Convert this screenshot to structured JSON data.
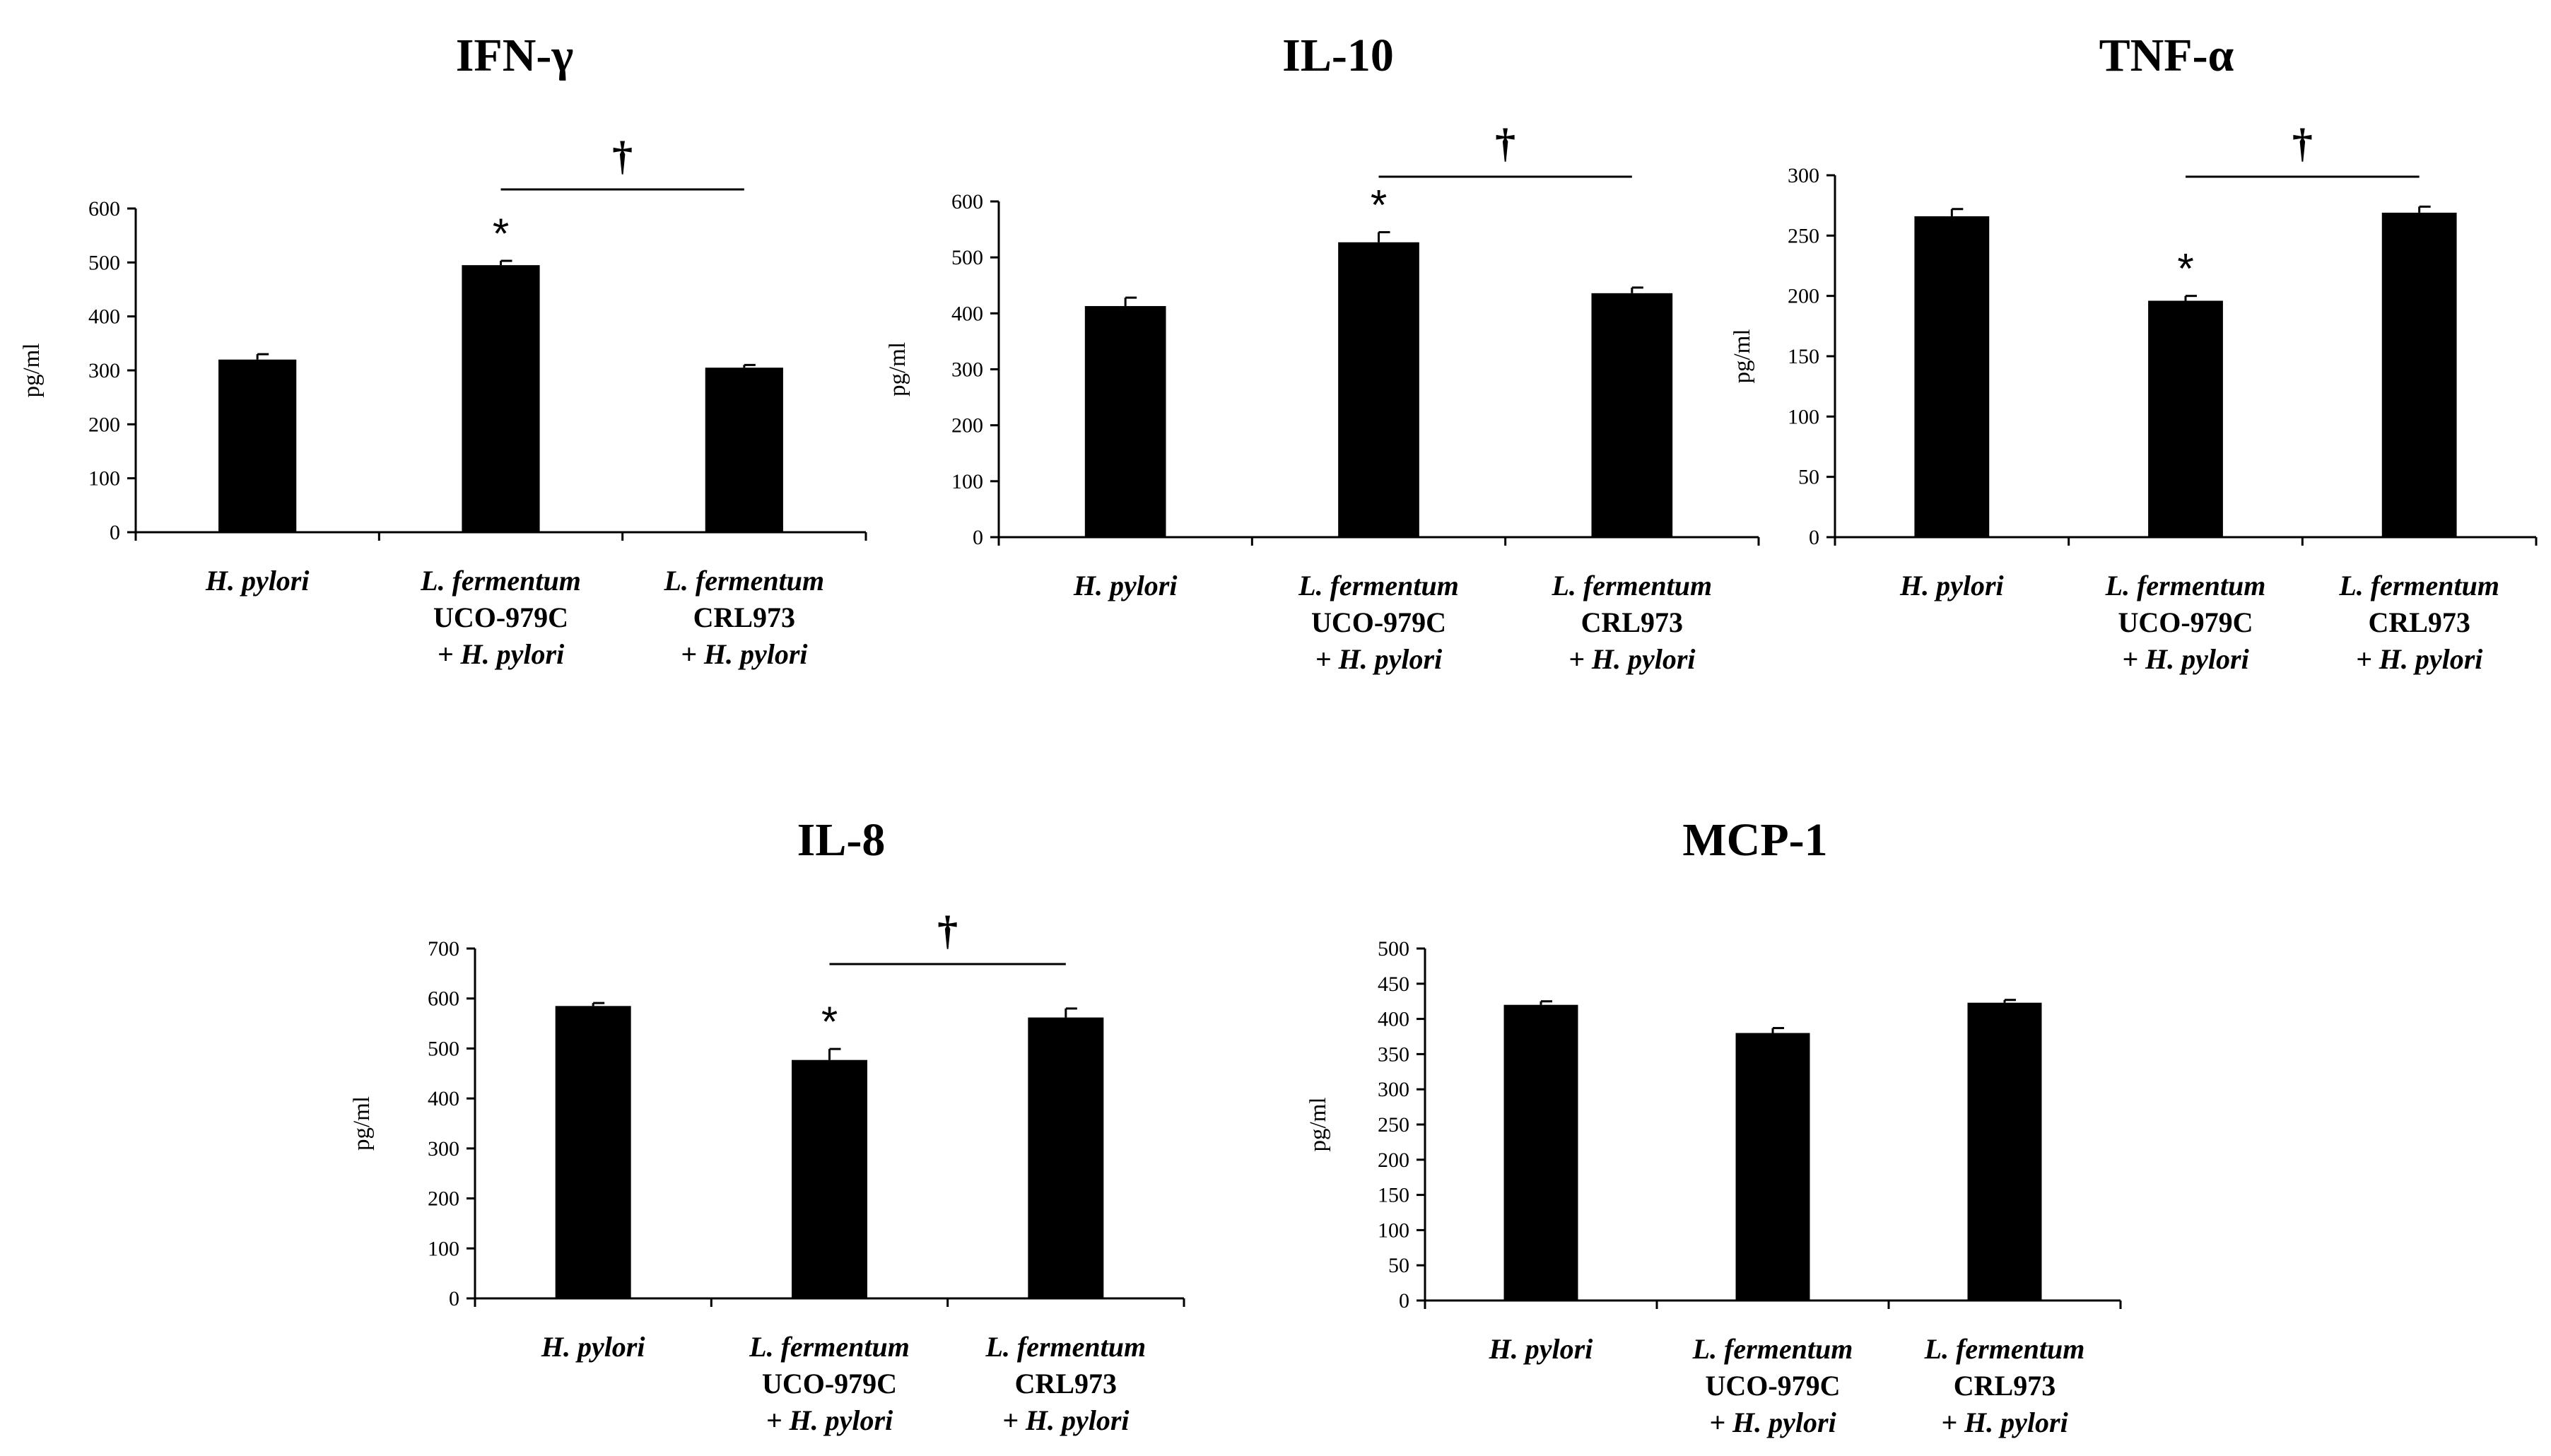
{
  "colors": {
    "bar": "#000000",
    "axis": "#000000",
    "background": "#ffffff"
  },
  "chart_data": [
    {
      "type": "bar",
      "title": "IFN-γ",
      "ylabel": "pg/ml",
      "ylim": [
        0,
        600
      ],
      "yticks": [
        0,
        100,
        200,
        300,
        400,
        500,
        600
      ],
      "categories": [
        "H. pylori",
        "L. fermentum UCO-979C + H. pylori",
        "L. fermentum CRL973 + H. pylori"
      ],
      "values": [
        320,
        495,
        305
      ],
      "errors": [
        10,
        8,
        5
      ],
      "star_marks": [
        "",
        "*",
        ""
      ],
      "bracket": {
        "from": 1,
        "to": 2,
        "symbol": "†"
      }
    },
    {
      "type": "bar",
      "title": "IL-10",
      "ylabel": "pg/ml",
      "ylim": [
        0,
        600
      ],
      "yticks": [
        0,
        100,
        200,
        300,
        400,
        500,
        600
      ],
      "categories": [
        "H. pylori",
        "L. fermentum UCO-979C + H. pylori",
        "L. fermentum CRL973 + H. pylori"
      ],
      "values": [
        413,
        527,
        436
      ],
      "errors": [
        15,
        18,
        10
      ],
      "star_marks": [
        "",
        "*",
        ""
      ],
      "bracket": {
        "from": 1,
        "to": 2,
        "symbol": "†"
      }
    },
    {
      "type": "bar",
      "title": "TNF-α",
      "ylabel": "pg/ml",
      "ylim": [
        0,
        300
      ],
      "yticks": [
        0,
        50,
        100,
        150,
        200,
        250,
        300
      ],
      "categories": [
        "H. pylori",
        "L. fermentum UCO-979C + H. pylori",
        "L. fermentum CRL973 + H. pylori"
      ],
      "values": [
        266,
        196,
        269
      ],
      "errors": [
        6,
        4,
        5
      ],
      "star_marks": [
        "",
        "*",
        ""
      ],
      "bracket": {
        "from": 1,
        "to": 2,
        "symbol": "†"
      }
    },
    {
      "type": "bar",
      "title": "IL-8",
      "ylabel": "pg/ml",
      "ylim": [
        0,
        700
      ],
      "yticks": [
        0,
        100,
        200,
        300,
        400,
        500,
        600,
        700
      ],
      "categories": [
        "H. pylori",
        "L. fermentum UCO-979C + H. pylori",
        "L. fermentum CRL973 + H. pylori"
      ],
      "values": [
        585,
        477,
        562
      ],
      "errors": [
        6,
        22,
        18
      ],
      "star_marks": [
        "",
        "*",
        ""
      ],
      "bracket": {
        "from": 1,
        "to": 2,
        "symbol": "†"
      }
    },
    {
      "type": "bar",
      "title": "MCP-1",
      "ylabel": "pg/ml",
      "ylim": [
        0,
        500
      ],
      "yticks": [
        0,
        50,
        100,
        150,
        200,
        250,
        300,
        350,
        400,
        450,
        500
      ],
      "categories": [
        "H. pylori",
        "L. fermentum UCO-979C + H. pylori",
        "L. fermentum CRL973 + H. pylori"
      ],
      "values": [
        420,
        380,
        423
      ],
      "errors": [
        5,
        7,
        4
      ],
      "star_marks": [
        "",
        "",
        ""
      ],
      "bracket": null
    }
  ],
  "category_labels": [
    {
      "lines": [
        {
          "text": "H. pylori",
          "italic": true
        }
      ]
    },
    {
      "lines": [
        {
          "text": "L. fermentum",
          "italic": true
        },
        {
          "text": "UCO-979C",
          "italic": false
        },
        {
          "text": "+ H. pylori",
          "italic": true
        }
      ]
    },
    {
      "lines": [
        {
          "text": "L. fermentum",
          "italic": true
        },
        {
          "text": "CRL973",
          "italic": false
        },
        {
          "text": "+ H. pylori",
          "italic": true
        }
      ]
    }
  ]
}
